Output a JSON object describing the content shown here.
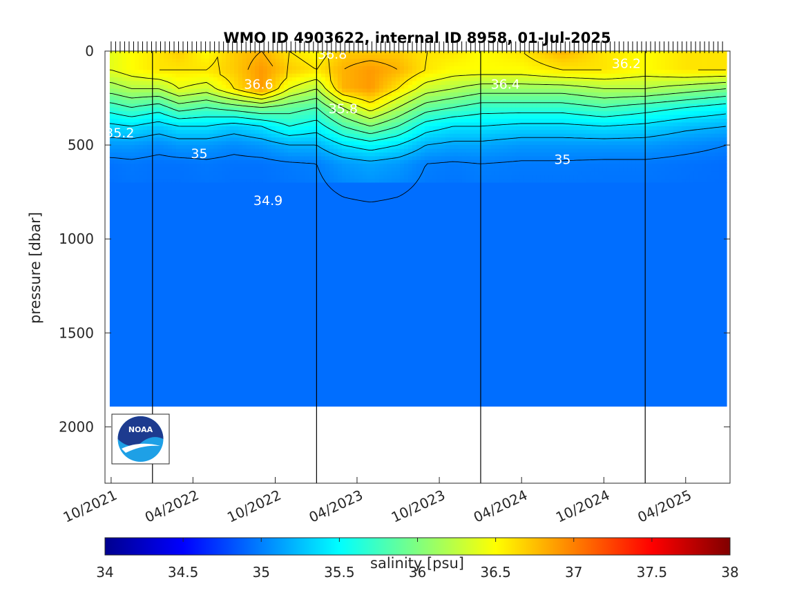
{
  "chart_data": {
    "type": "heatmap",
    "title": "WMO ID 4903622, internal ID 8958, 01-Jul-2025",
    "xlabel": "",
    "ylabel": "pressure [dbar]",
    "x_tick_labels": [
      "10/2021",
      "04/2022",
      "10/2022",
      "04/2023",
      "10/2023",
      "04/2024",
      "10/2024",
      "04/2025"
    ],
    "y_tick_labels": [
      "0",
      "500",
      "1000",
      "1500",
      "2000"
    ],
    "ylim": [
      0,
      2300
    ],
    "y_reversed": true,
    "xlim": [
      "2021-09-25",
      "2025-07-01"
    ],
    "year_boundaries": [
      "2022-01-01",
      "2023-01-01",
      "2024-01-01",
      "2025-01-01"
    ],
    "colorbar": {
      "label": "salinity [psu]",
      "min": 34,
      "max": 38,
      "ticks": [
        "34",
        "34.5",
        "35",
        "35.5",
        "36",
        "36.5",
        "37",
        "37.5",
        "38"
      ],
      "colormap": "jet"
    },
    "max_profile_depth_dbar": 1890,
    "contour_interval_psu": 0.2,
    "contour_labels": [
      "35.2",
      "35",
      "34.9",
      "35.8",
      "35",
      "36.4",
      "36.6",
      "36.8",
      "36.2"
    ],
    "profile_columns": [
      {
        "date": "2021-10-01",
        "s0": 36.4,
        "s100": 36.4,
        "s200": 36.1,
        "s300": 35.7,
        "s400": 35.35,
        "s500": 35.1,
        "s600": 34.95
      },
      {
        "date": "2021-11-15",
        "s0": 36.5,
        "s100": 36.5,
        "s200": 36.2,
        "s300": 35.8,
        "s400": 35.4,
        "s500": 35.1,
        "s600": 34.97
      },
      {
        "date": "2022-01-15",
        "s0": 36.6,
        "s100": 36.6,
        "s200": 36.2,
        "s300": 35.7,
        "s400": 35.3,
        "s500": 35.05,
        "s600": 34.95
      },
      {
        "date": "2022-03-01",
        "s0": 36.7,
        "s100": 36.6,
        "s200": 36.4,
        "s300": 35.9,
        "s400": 35.4,
        "s500": 35.1,
        "s600": 34.95
      },
      {
        "date": "2022-05-01",
        "s0": 36.5,
        "s100": 36.6,
        "s200": 36.3,
        "s300": 35.8,
        "s400": 35.4,
        "s500": 35.1,
        "s600": 34.97
      },
      {
        "date": "2022-07-01",
        "s0": 36.7,
        "s100": 36.7,
        "s200": 36.6,
        "s300": 35.9,
        "s400": 35.3,
        "s500": 35.05,
        "s600": 34.95
      },
      {
        "date": "2022-09-01",
        "s0": 36.8,
        "s100": 36.9,
        "s200": 36.9,
        "s300": 36.0,
        "s400": 35.4,
        "s500": 35.1,
        "s600": 34.95
      },
      {
        "date": "2022-11-01",
        "s0": 36.6,
        "s100": 36.7,
        "s200": 36.4,
        "s300": 35.9,
        "s400": 35.6,
        "s500": 35.2,
        "s600": 34.98
      },
      {
        "date": "2023-01-01",
        "s0": 36.5,
        "s100": 36.6,
        "s200": 36.2,
        "s300": 35.8,
        "s400": 35.5,
        "s500": 35.2,
        "s600": 35.0
      },
      {
        "date": "2023-03-01",
        "s0": 36.7,
        "s100": 36.8,
        "s200": 36.8,
        "s300": 36.2,
        "s400": 35.8,
        "s500": 35.4,
        "s600": 35.1
      },
      {
        "date": "2023-05-01",
        "s0": 36.7,
        "s100": 36.9,
        "s200": 36.9,
        "s300": 36.5,
        "s400": 36.0,
        "s500": 35.5,
        "s600": 35.15
      },
      {
        "date": "2023-07-01",
        "s0": 36.7,
        "s100": 36.8,
        "s200": 36.6,
        "s300": 36.2,
        "s400": 35.8,
        "s500": 35.4,
        "s600": 35.1
      },
      {
        "date": "2023-09-01",
        "s0": 36.6,
        "s100": 36.6,
        "s200": 36.3,
        "s300": 35.9,
        "s400": 35.5,
        "s500": 35.2,
        "s600": 35.0
      },
      {
        "date": "2023-11-01",
        "s0": 36.6,
        "s100": 36.5,
        "s200": 36.2,
        "s300": 35.8,
        "s400": 35.4,
        "s500": 35.15,
        "s600": 34.98
      },
      {
        "date": "2024-01-01",
        "s0": 36.5,
        "s100": 36.5,
        "s200": 36.1,
        "s300": 35.7,
        "s400": 35.4,
        "s500": 35.15,
        "s600": 35.0
      },
      {
        "date": "2024-04-01",
        "s0": 36.6,
        "s100": 36.5,
        "s200": 36.1,
        "s300": 35.7,
        "s400": 35.35,
        "s500": 35.1,
        "s600": 34.98
      },
      {
        "date": "2024-07-01",
        "s0": 36.8,
        "s100": 36.6,
        "s200": 36.1,
        "s300": 35.7,
        "s400": 35.35,
        "s500": 35.1,
        "s600": 34.98
      },
      {
        "date": "2024-10-01",
        "s0": 36.6,
        "s100": 36.6,
        "s200": 36.2,
        "s300": 35.8,
        "s400": 35.4,
        "s500": 35.1,
        "s600": 34.97
      },
      {
        "date": "2025-01-01",
        "s0": 36.5,
        "s100": 36.5,
        "s200": 36.2,
        "s300": 35.7,
        "s400": 35.35,
        "s500": 35.1,
        "s600": 34.97
      },
      {
        "date": "2025-04-01",
        "s0": 36.6,
        "s100": 36.6,
        "s200": 36.1,
        "s300": 35.6,
        "s400": 35.25,
        "s500": 35.05,
        "s600": 34.95
      },
      {
        "date": "2025-07-01",
        "s0": 36.6,
        "s100": 36.6,
        "s200": 36.0,
        "s300": 35.5,
        "s400": 35.2,
        "s500": 35.0,
        "s600": 34.93
      }
    ]
  },
  "logo": {
    "text": "NOAA"
  }
}
